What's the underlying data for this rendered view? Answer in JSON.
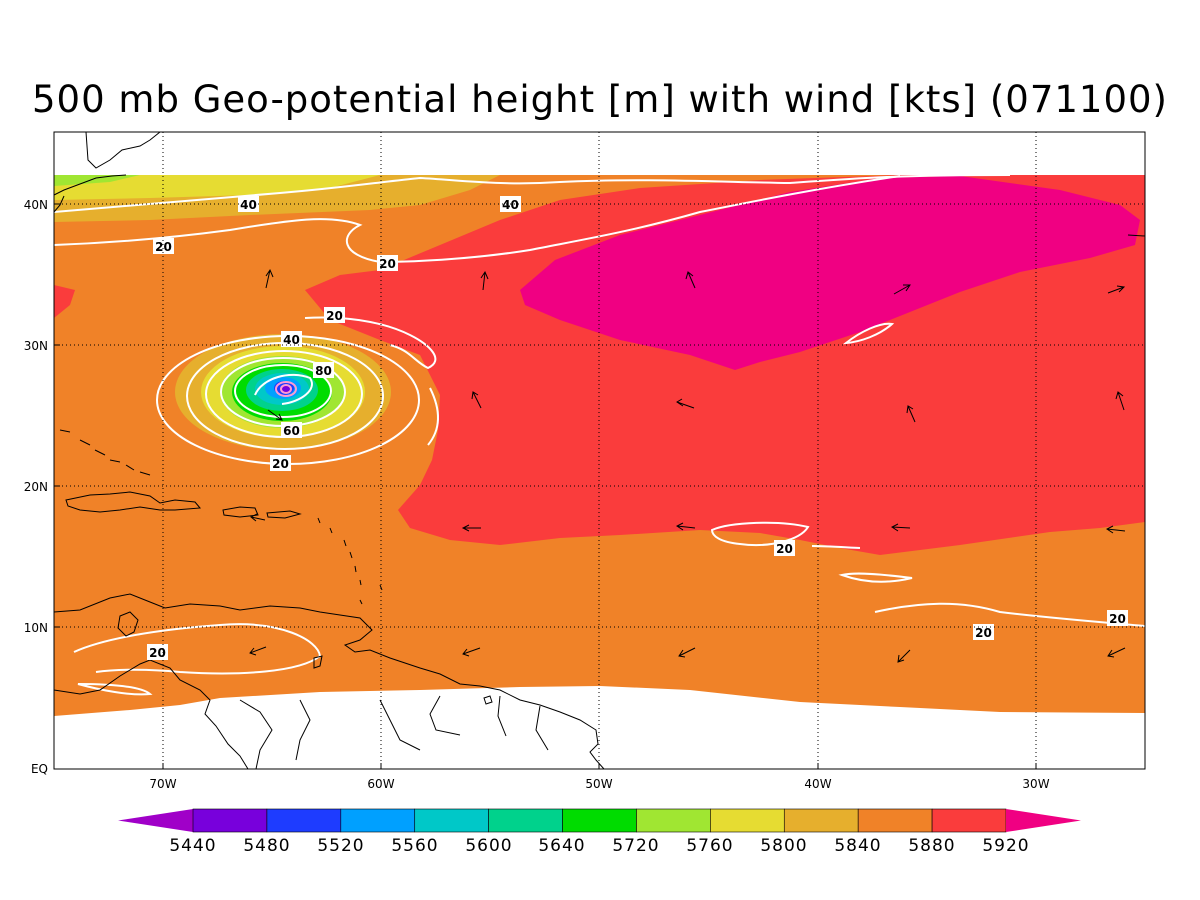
{
  "title": "500 mb Geo-potential height [m] with wind [kts] (071100)",
  "latitude_labels": [
    "EQ",
    "10N",
    "20N",
    "30N",
    "40N"
  ],
  "longitude_labels": [
    "70W",
    "60W",
    "50W",
    "40W",
    "30W"
  ],
  "colorbar": {
    "labels": [
      "5440",
      "5480",
      "5520",
      "5560",
      "5600",
      "5640",
      "5720",
      "5760",
      "5800",
      "5840",
      "5880",
      "5920"
    ],
    "colors": [
      "#a000c8",
      "#7800dc",
      "#1e3cff",
      "#00a0ff",
      "#00c8c8",
      "#00d28c",
      "#00dc00",
      "#a0e632",
      "#e6dc32",
      "#e6af2d",
      "#f08228",
      "#fa3c3c",
      "#f00082"
    ]
  },
  "wind_speed_contour_labels": [
    "40",
    "40",
    "20",
    "20",
    "20",
    "40",
    "80",
    "60",
    "20",
    "20",
    "20",
    "20",
    "20"
  ]
}
